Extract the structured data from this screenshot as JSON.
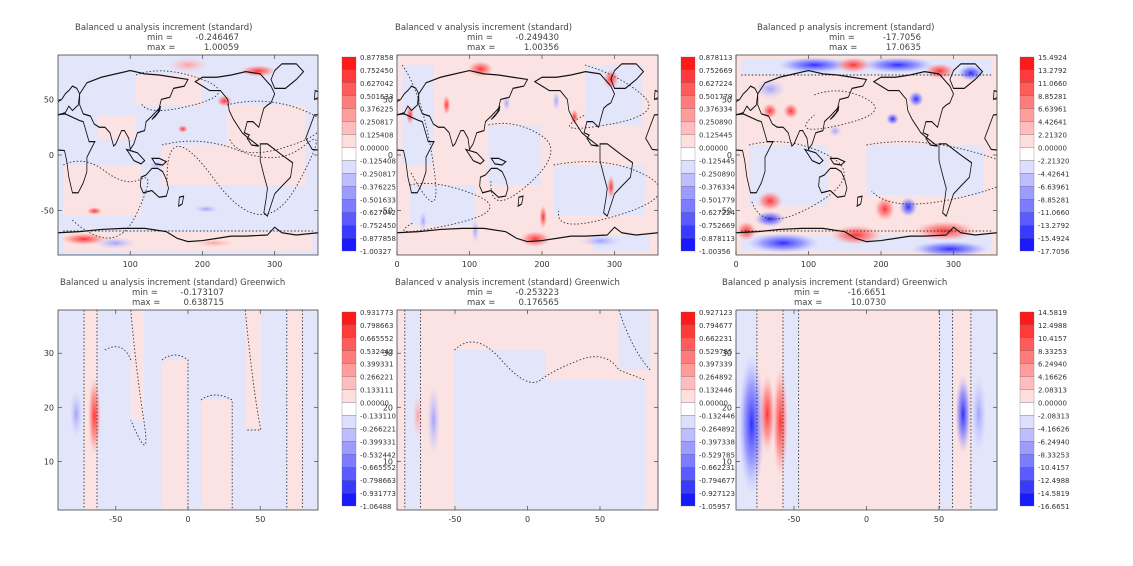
{
  "chart_data": [
    {
      "type": "heatmap",
      "title": "Balanced u analysis increment (standard)",
      "min_label": "min =",
      "min_value": "-0.246467",
      "max_label": "max =",
      "max_value": "1.00059",
      "x_ticks": [
        "100",
        "200",
        "300"
      ],
      "y_ticks": [
        "50",
        "0",
        "-50"
      ],
      "xlim": [
        0,
        360
      ],
      "ylim": [
        -90,
        90
      ],
      "colorbar": [
        "0.877858",
        "0.752450",
        "0.627042",
        "0.501633",
        "0.376225",
        "0.250817",
        "0.125408",
        "0.00000",
        "-0.125408",
        "-0.250817",
        "-0.376225",
        "-0.501633",
        "-0.627042",
        "-0.752450",
        "-0.877858",
        "-1.00327"
      ],
      "map": true
    },
    {
      "type": "heatmap",
      "title": "Balanced v analysis increment (standard)",
      "min_label": "min =",
      "min_value": "-0.249430",
      "max_label": "max =",
      "max_value": "1.00356",
      "x_ticks": [
        "0",
        "100",
        "200",
        "300"
      ],
      "y_ticks": [
        "50",
        "0",
        "-50"
      ],
      "xlim": [
        0,
        360
      ],
      "ylim": [
        -90,
        90
      ],
      "colorbar": [
        "0.878113",
        "0.752669",
        "0.627224",
        "0.501779",
        "0.376334",
        "0.250890",
        "0.125445",
        "0.00000",
        "-0.125445",
        "-0.250890",
        "-0.376334",
        "-0.501779",
        "-0.627224",
        "-0.752669",
        "-0.878113",
        "-1.00356"
      ],
      "map": true
    },
    {
      "type": "heatmap",
      "title": "Balanced p analysis increment (standard)",
      "min_label": "min =",
      "min_value": "-17.7056",
      "max_label": "max =",
      "max_value": "17.0635",
      "x_ticks": [
        "0",
        "100",
        "200",
        "300"
      ],
      "y_ticks": [
        "50",
        "0",
        "-50"
      ],
      "xlim": [
        0,
        360
      ],
      "ylim": [
        -90,
        90
      ],
      "colorbar": [
        "15.4924",
        "13.2792",
        "11.0660",
        "8.85281",
        "6.63961",
        "4.42641",
        "2.21320",
        "0.00000",
        "-2.21320",
        "-4.42641",
        "-6.63961",
        "-8.85281",
        "-11.0660",
        "-13.2792",
        "-15.4924",
        "-17.7056"
      ],
      "map": true
    },
    {
      "type": "heatmap",
      "title": "Balanced u analysis increment (standard) Greenwich",
      "min_label": "min =",
      "min_value": "-0.173107",
      "max_label": "max =",
      "max_value": "0.638715",
      "x_ticks": [
        "-50",
        "0",
        "50"
      ],
      "y_ticks": [
        "30",
        "20",
        "10"
      ],
      "xlim": [
        -90,
        90
      ],
      "ylim": [
        1,
        38
      ],
      "colorbar": [
        "0.931773",
        "0.798663",
        "0.665552",
        "0.532442",
        "0.399331",
        "0.266221",
        "0.133111",
        "0.00000",
        "-0.133110",
        "-0.266221",
        "-0.399331",
        "-0.532442",
        "-0.665552",
        "-0.798663",
        "-0.931773",
        "-1.06488"
      ],
      "map": false
    },
    {
      "type": "heatmap",
      "title": "Balanced v analysis increment (standard) Greenwich",
      "min_label": "min =",
      "min_value": "-0.253223",
      "max_label": "max =",
      "max_value": "0.176565",
      "x_ticks": [
        "-50",
        "0",
        "50"
      ],
      "y_ticks": [
        "30",
        "20",
        "10"
      ],
      "xlim": [
        -90,
        90
      ],
      "ylim": [
        1,
        38
      ],
      "colorbar": [
        "0.927123",
        "0.794677",
        "0.662231",
        "0.529785",
        "0.397339",
        "0.264892",
        "0.132446",
        "0.00000",
        "-0.132446",
        "-0.264892",
        "-0.397338",
        "-0.529785",
        "-0.662231",
        "-0.794677",
        "-0.927123",
        "-1.05957"
      ],
      "map": false
    },
    {
      "type": "heatmap",
      "title": "Balanced p analysis increment (standard) Greenwich",
      "min_label": "min =",
      "min_value": "-16.6651",
      "max_label": "max =",
      "max_value": "10.0730",
      "x_ticks": [
        "-50",
        "0",
        "50"
      ],
      "y_ticks": [
        "30",
        "20",
        "10"
      ],
      "xlim": [
        -90,
        90
      ],
      "ylim": [
        1,
        38
      ],
      "colorbar": [
        "14.5819",
        "12.4988",
        "10.4157",
        "8.33253",
        "6.24940",
        "4.16626",
        "2.08313",
        "0.00000",
        "-2.08313",
        "-4.16626",
        "-6.24940",
        "-8.33253",
        "-10.4157",
        "-12.4988",
        "-14.5819",
        "-16.6651"
      ],
      "map": false
    }
  ],
  "colors": {
    "bg_pos": "#fbe3e3",
    "bg_neg": "#e3e6fb",
    "pos_strong": "#ff0000",
    "neg_strong": "#0000ff",
    "coast": "#111111",
    "contour": "#333333"
  }
}
